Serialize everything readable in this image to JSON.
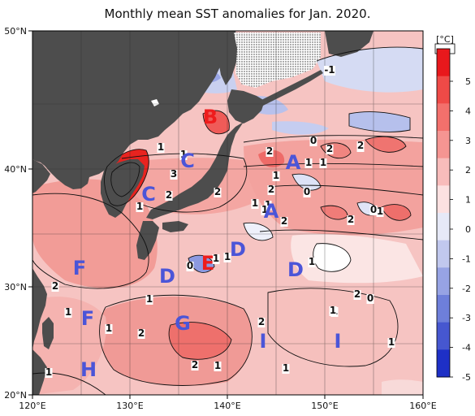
{
  "title": "Monthly mean SST anomalies for Jan. 2020.",
  "axes": {
    "lon_ticks": [
      "120°E",
      "130°E",
      "140°E",
      "150°E",
      "160°E"
    ],
    "lat_ticks": [
      "50°N",
      "40°N",
      "30°N",
      "20°N"
    ]
  },
  "colorbar": {
    "unit": "[°C]",
    "ticks": [
      "5",
      "4",
      "3",
      "2",
      "1",
      "0",
      "-1",
      "-2",
      "-3",
      "-4",
      "-5"
    ],
    "colors": [
      "#e8181c",
      "#ef4a47",
      "#f3706c",
      "#f59592",
      "#f8bcbb",
      "#fce1e1",
      "#e6e9f7",
      "#c1c8ee",
      "#97a3e4",
      "#6e7fda",
      "#4657d0",
      "#1e30c6"
    ]
  },
  "zones": [
    {
      "label": "A",
      "color": "#4b55d8"
    },
    {
      "label": "A",
      "color": "#4b55d8"
    },
    {
      "label": "B",
      "color": "#ee1c1c"
    },
    {
      "label": "C",
      "color": "#4b55d8"
    },
    {
      "label": "C",
      "color": "#4b55d8"
    },
    {
      "label": "D",
      "color": "#4b55d8"
    },
    {
      "label": "D",
      "color": "#4b55d8"
    },
    {
      "label": "D",
      "color": "#4b55d8"
    },
    {
      "label": "E",
      "color": "#ee1c1c"
    },
    {
      "label": "F",
      "color": "#4b55d8"
    },
    {
      "label": "F",
      "color": "#4b55d8"
    },
    {
      "label": "G",
      "color": "#4b55d8"
    },
    {
      "label": "H",
      "color": "#4b55d8"
    },
    {
      "label": "I",
      "color": "#4b55d8"
    },
    {
      "label": "I",
      "color": "#4b55d8"
    }
  ],
  "contour_labels": [
    "-1",
    "1",
    "2",
    "0",
    "2",
    "1",
    "1",
    "1",
    "3",
    "2",
    "0",
    "2",
    "1",
    "1",
    "2",
    "1",
    "1",
    "1",
    "1",
    "0",
    "2",
    "0",
    "1",
    "2",
    "1",
    "0",
    "2",
    "2",
    "1",
    "1",
    "1",
    "2",
    "1",
    "1",
    "1",
    "1",
    "2",
    "1",
    "2",
    "2",
    "1",
    "1",
    "1"
  ]
}
